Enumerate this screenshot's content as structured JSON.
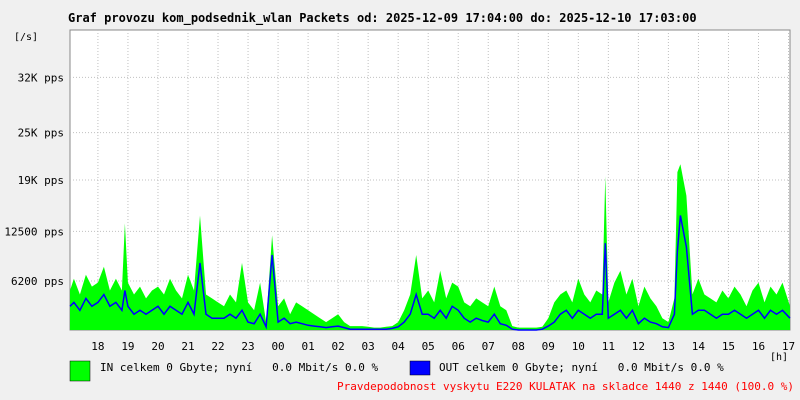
{
  "chart_data": {
    "type": "area",
    "title": "Graf provozu kom_podsednik_wlan Packets od: 2025-12-09 17:04:00 do: 2025-12-10 17:03:00",
    "ylabel": "[/s]",
    "xlabel": "[h]",
    "ylim": [
      0,
      38000
    ],
    "yticks": [
      {
        "value": 6200,
        "label": "6200 pps"
      },
      {
        "value": 12500,
        "label": "12500 pps"
      },
      {
        "value": 19000,
        "label": "19K pps"
      },
      {
        "value": 25000,
        "label": "25K pps"
      },
      {
        "value": 32000,
        "label": "32K pps"
      }
    ],
    "xlim": [
      17.07,
      41.05
    ],
    "xticks": [
      {
        "value": 18,
        "label": "18"
      },
      {
        "value": 19,
        "label": "19"
      },
      {
        "value": 20,
        "label": "20"
      },
      {
        "value": 21,
        "label": "21"
      },
      {
        "value": 22,
        "label": "22"
      },
      {
        "value": 23,
        "label": "23"
      },
      {
        "value": 24,
        "label": "00"
      },
      {
        "value": 25,
        "label": "01"
      },
      {
        "value": 26,
        "label": "02"
      },
      {
        "value": 27,
        "label": "03"
      },
      {
        "value": 28,
        "label": "04"
      },
      {
        "value": 29,
        "label": "05"
      },
      {
        "value": 30,
        "label": "06"
      },
      {
        "value": 31,
        "label": "07"
      },
      {
        "value": 32,
        "label": "08"
      },
      {
        "value": 33,
        "label": "09"
      },
      {
        "value": 34,
        "label": "10"
      },
      {
        "value": 35,
        "label": "11"
      },
      {
        "value": 36,
        "label": "12"
      },
      {
        "value": 37,
        "label": "13"
      },
      {
        "value": 38,
        "label": "14"
      },
      {
        "value": 39,
        "label": "15"
      },
      {
        "value": 40,
        "label": "16"
      },
      {
        "value": 41,
        "label": "17"
      }
    ],
    "grid": true,
    "series": [
      {
        "name": "IN celkem 0 Gbyte; nyní   0.0 Mbit/s 0.0 %",
        "color": "#00ff00",
        "fill": true,
        "x": [
          17.07,
          17.2,
          17.4,
          17.6,
          17.8,
          18.0,
          18.2,
          18.4,
          18.6,
          18.8,
          18.9,
          19.0,
          19.2,
          19.4,
          19.6,
          19.8,
          20.0,
          20.2,
          20.4,
          20.6,
          20.8,
          21.0,
          21.2,
          21.4,
          21.6,
          21.8,
          22.0,
          22.2,
          22.4,
          22.6,
          22.8,
          23.0,
          23.2,
          23.4,
          23.6,
          23.8,
          24.0,
          24.2,
          24.4,
          24.6,
          24.8,
          25.0,
          25.2,
          25.4,
          25.6,
          25.8,
          26.0,
          26.2,
          26.4,
          26.6,
          26.8,
          27.0,
          27.2,
          27.4,
          27.6,
          27.8,
          28.0,
          28.2,
          28.4,
          28.6,
          28.8,
          29.0,
          29.2,
          29.4,
          29.6,
          29.8,
          30.0,
          30.2,
          30.4,
          30.6,
          30.8,
          31.0,
          31.2,
          31.4,
          31.6,
          31.8,
          32.0,
          32.2,
          32.4,
          32.6,
          32.8,
          33.0,
          33.2,
          33.4,
          33.6,
          33.8,
          34.0,
          34.2,
          34.4,
          34.6,
          34.8,
          34.9,
          35.0,
          35.2,
          35.4,
          35.6,
          35.8,
          36.0,
          36.2,
          36.4,
          36.6,
          36.8,
          37.0,
          37.2,
          37.3,
          37.4,
          37.6,
          37.8,
          38.0,
          38.2,
          38.4,
          38.6,
          38.8,
          39.0,
          39.2,
          39.4,
          39.6,
          39.8,
          40.0,
          40.2,
          40.4,
          40.6,
          40.8,
          41.05
        ],
        "values": [
          5000,
          6500,
          4500,
          7000,
          5500,
          6000,
          8000,
          5000,
          6500,
          5000,
          13500,
          6000,
          4500,
          5500,
          4000,
          5000,
          5500,
          4500,
          6500,
          5000,
          4000,
          7000,
          5000,
          14500,
          4500,
          4000,
          3500,
          3000,
          4500,
          3500,
          8500,
          3500,
          2500,
          6000,
          1000,
          12000,
          3000,
          4000,
          2000,
          3500,
          3000,
          2500,
          2000,
          1500,
          1000,
          1500,
          2000,
          1000,
          500,
          500,
          500,
          400,
          300,
          300,
          400,
          500,
          1000,
          2500,
          4500,
          9500,
          4000,
          5000,
          3500,
          7500,
          4000,
          6000,
          5500,
          3500,
          3000,
          4000,
          3500,
          3000,
          5500,
          3000,
          2500,
          500,
          300,
          300,
          300,
          300,
          400,
          1500,
          3500,
          4500,
          5000,
          3500,
          6500,
          4500,
          3500,
          5000,
          4500,
          19500,
          3500,
          6000,
          7500,
          4500,
          6500,
          3000,
          5500,
          4000,
          3000,
          1500,
          1000,
          4000,
          20000,
          21000,
          17000,
          4500,
          6500,
          4500,
          4000,
          3500,
          5000,
          4000,
          5500,
          4500,
          3000,
          5000,
          6000,
          3500,
          5500,
          4500,
          6000,
          3000
        ]
      },
      {
        "name": "OUT celkem 0 Gbyte; nyní   0.0 Mbit/s 0.0 %",
        "color": "#0000ff",
        "fill": false,
        "x": [
          17.07,
          17.2,
          17.4,
          17.6,
          17.8,
          18.0,
          18.2,
          18.4,
          18.6,
          18.8,
          18.9,
          19.0,
          19.2,
          19.4,
          19.6,
          19.8,
          20.0,
          20.2,
          20.4,
          20.6,
          20.8,
          21.0,
          21.2,
          21.4,
          21.6,
          21.8,
          22.0,
          22.2,
          22.4,
          22.6,
          22.8,
          23.0,
          23.2,
          23.4,
          23.6,
          23.8,
          24.0,
          24.2,
          24.4,
          24.6,
          24.8,
          25.0,
          25.2,
          25.4,
          25.6,
          25.8,
          26.0,
          26.2,
          26.4,
          26.6,
          26.8,
          27.0,
          27.2,
          27.4,
          27.6,
          27.8,
          28.0,
          28.2,
          28.4,
          28.6,
          28.8,
          29.0,
          29.2,
          29.4,
          29.6,
          29.8,
          30.0,
          30.2,
          30.4,
          30.6,
          30.8,
          31.0,
          31.2,
          31.4,
          31.6,
          31.8,
          32.0,
          32.2,
          32.4,
          32.6,
          32.8,
          33.0,
          33.2,
          33.4,
          33.6,
          33.8,
          34.0,
          34.2,
          34.4,
          34.6,
          34.8,
          34.9,
          35.0,
          35.2,
          35.4,
          35.6,
          35.8,
          36.0,
          36.2,
          36.4,
          36.6,
          36.8,
          37.0,
          37.2,
          37.3,
          37.4,
          37.6,
          37.8,
          38.0,
          38.2,
          38.4,
          38.6,
          38.8,
          39.0,
          39.2,
          39.4,
          39.6,
          39.8,
          40.0,
          40.2,
          40.4,
          40.6,
          40.8,
          41.05
        ],
        "values": [
          3000,
          3500,
          2500,
          4000,
          3000,
          3500,
          4500,
          3000,
          3500,
          2500,
          5000,
          3000,
          2000,
          2500,
          2000,
          2500,
          3000,
          2000,
          3000,
          2500,
          2000,
          3500,
          2000,
          8500,
          2000,
          1500,
          1500,
          1500,
          2000,
          1500,
          2500,
          1000,
          800,
          2000,
          400,
          9500,
          1000,
          1500,
          800,
          1000,
          800,
          600,
          500,
          400,
          300,
          400,
          500,
          300,
          100,
          100,
          100,
          100,
          100,
          100,
          100,
          200,
          400,
          1000,
          2000,
          4500,
          2000,
          2000,
          1500,
          2500,
          1500,
          3000,
          2500,
          1500,
          1000,
          1500,
          1200,
          1000,
          2000,
          800,
          600,
          100,
          0,
          0,
          0,
          0,
          100,
          500,
          1000,
          2000,
          2500,
          1500,
          2500,
          2000,
          1500,
          2000,
          2000,
          11000,
          1500,
          2000,
          2500,
          1500,
          2500,
          800,
          1500,
          1000,
          800,
          400,
          300,
          2000,
          10000,
          14500,
          10500,
          2000,
          2500,
          2500,
          2000,
          1500,
          2000,
          2000,
          2500,
          2000,
          1500,
          2000,
          2500,
          1500,
          2500,
          2000,
          2500,
          1500
        ]
      }
    ]
  },
  "legend": {
    "in_label": "IN celkem 0 Gbyte; nyní   0.0 Mbit/s 0.0 %",
    "out_label": "OUT celkem 0 Gbyte; nyní   0.0 Mbit/s 0.0 %",
    "in_color": "#00ff00",
    "out_color": "#0000ff"
  },
  "footer": {
    "probability": "Pravdepodobnost vyskytu E220 KULATAK na skladce 1440 z 1440 (100.0 %)",
    "color": "#ff0000"
  }
}
